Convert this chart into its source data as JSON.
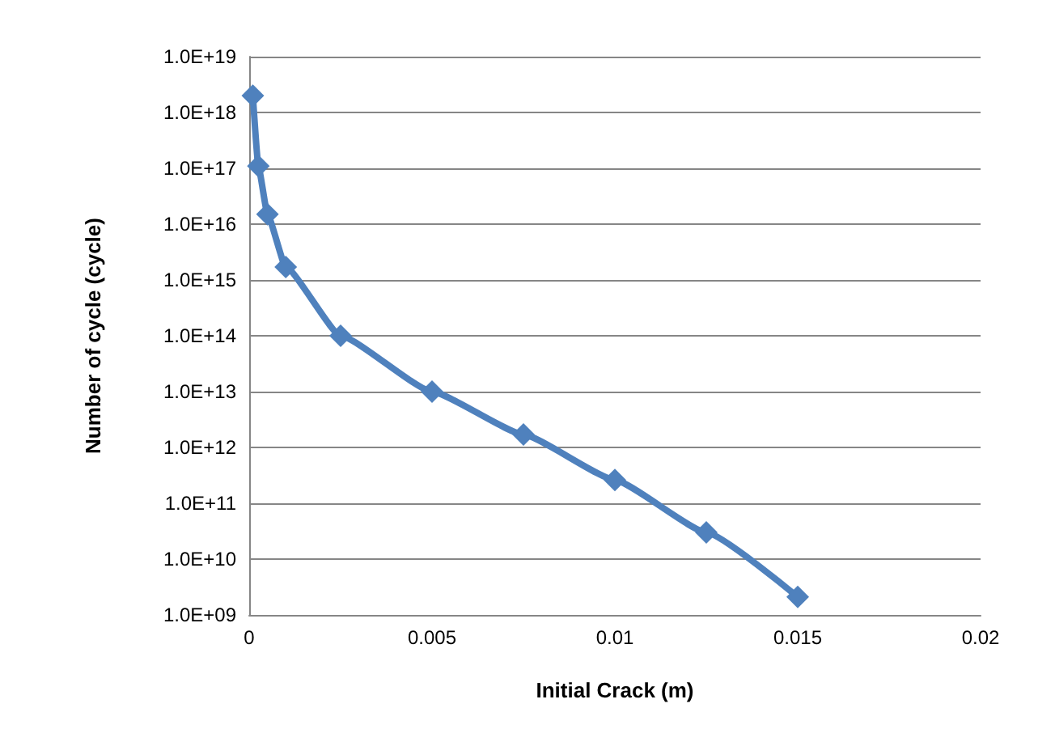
{
  "chart_data": {
    "type": "line",
    "xlabel": "Initial Crack (m)",
    "ylabel": "Number of cycle (cycle)",
    "x": [
      0.0001,
      0.00025,
      0.0005,
      0.001,
      0.0025,
      0.005,
      0.0075,
      0.01,
      0.0125,
      0.015
    ],
    "series": [
      {
        "color": "#4f81bd",
        "values": [
          2e+18,
          1.1e+17,
          1.5e+16,
          1700000000000000.0,
          100000000000000.0,
          10000000000000.0,
          1700000000000.0,
          260000000000.0,
          30000000000.0,
          2100000000.0
        ]
      }
    ],
    "xlim": [
      0,
      0.02
    ],
    "xticks": [
      0,
      0.005,
      0.01,
      0.015,
      0.02
    ],
    "ylim": [
      1000000000.0,
      1e+19
    ],
    "yticks": [
      {
        "value": 1000000000.0,
        "label": "1.0E+09"
      },
      {
        "value": 10000000000.0,
        "label": "1.0E+10"
      },
      {
        "value": 100000000000.0,
        "label": "1.0E+11"
      },
      {
        "value": 1000000000000.0,
        "label": "1.0E+12"
      },
      {
        "value": 10000000000000.0,
        "label": "1.0E+13"
      },
      {
        "value": 100000000000000.0,
        "label": "1.0E+14"
      },
      {
        "value": 1000000000000000.0,
        "label": "1.0E+15"
      },
      {
        "value": 1e+16,
        "label": "1.0E+16"
      },
      {
        "value": 1e+17,
        "label": "1.0E+17"
      },
      {
        "value": 1e+18,
        "label": "1.0E+18"
      },
      {
        "value": 1e+19,
        "label": "1.0E+19"
      }
    ],
    "log": "y",
    "grid": "y",
    "marker": "diamond",
    "line_style": "solid"
  }
}
